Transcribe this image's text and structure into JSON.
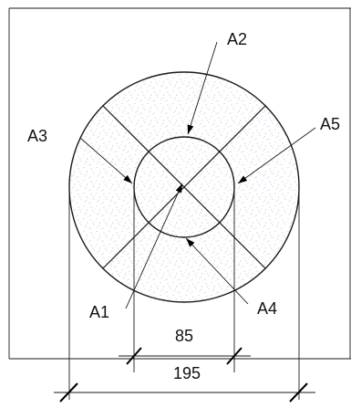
{
  "labels": {
    "a1": "A1",
    "a2": "A2",
    "a3": "A3",
    "a4": "A4",
    "a5": "A5"
  },
  "dimensions": {
    "inner": "85",
    "outer": "195"
  },
  "colors": {
    "line": "#1a1a1a",
    "fill": "#ffffff",
    "speckle": "#8fa6c4"
  }
}
